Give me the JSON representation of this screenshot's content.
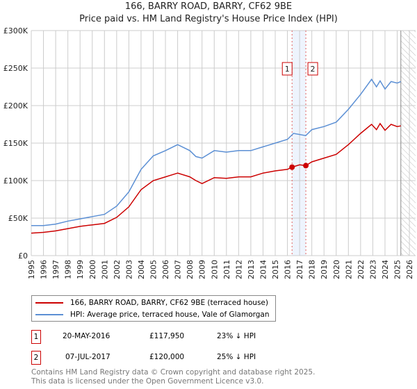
{
  "chart_data": {
    "type": "line",
    "title": "166, BARRY ROAD, BARRY, CF62 9BE",
    "subtitle": "Price paid vs. HM Land Registry's House Price Index (HPI)",
    "xlim": [
      1995,
      2026
    ],
    "ylim": [
      0,
      300000
    ],
    "x_ticks": [
      "1995",
      "1996",
      "1997",
      "1998",
      "1999",
      "2000",
      "2001",
      "2002",
      "2003",
      "2004",
      "2005",
      "2006",
      "2007",
      "2008",
      "2009",
      "2010",
      "2011",
      "2012",
      "2013",
      "2014",
      "2015",
      "2016",
      "2017",
      "2018",
      "2019",
      "2020",
      "2021",
      "2022",
      "2023",
      "2024",
      "2025",
      "2026"
    ],
    "y_ticks": [
      {
        "v": 0,
        "label": "£0"
      },
      {
        "v": 50000,
        "label": "£50K"
      },
      {
        "v": 100000,
        "label": "£100K"
      },
      {
        "v": 150000,
        "label": "£150K"
      },
      {
        "v": 200000,
        "label": "£200K"
      },
      {
        "v": 250000,
        "label": "£250K"
      },
      {
        "v": 300000,
        "label": "£300K"
      }
    ],
    "grid": true,
    "series": [
      {
        "name": "166, BARRY ROAD, BARRY, CF62 9BE (terraced house)",
        "color": "#cc0000",
        "x": [
          1995,
          1996,
          1997,
          1998,
          1999,
          2000,
          2001,
          2002,
          2003,
          2004,
          2005,
          2006,
          2007,
          2008,
          2008.5,
          2009,
          2010,
          2011,
          2012,
          2013,
          2014,
          2015,
          2016,
          2016.38,
          2017,
          2017.51,
          2018,
          2019,
          2020,
          2021,
          2022,
          2022.9,
          2023.3,
          2023.6,
          2024,
          2024.5,
          2025,
          2025.3
        ],
        "y": [
          30000,
          31000,
          33000,
          36000,
          39000,
          41000,
          43000,
          51000,
          65000,
          88000,
          100000,
          105000,
          110000,
          105000,
          100000,
          96000,
          104000,
          103000,
          105000,
          105000,
          110000,
          113000,
          115000,
          117950,
          121000,
          120000,
          125000,
          130000,
          135000,
          148000,
          163000,
          175000,
          168000,
          176000,
          167000,
          175000,
          172000,
          173000
        ]
      },
      {
        "name": "HPI: Average price, terraced house, Vale of Glamorgan",
        "color": "#5b8fd4",
        "x": [
          1995,
          1996,
          1997,
          1998,
          1999,
          2000,
          2001,
          2002,
          2003,
          2004,
          2005,
          2006,
          2007,
          2008,
          2008.5,
          2009,
          2010,
          2011,
          2012,
          2013,
          2014,
          2015,
          2016,
          2016.5,
          2017.5,
          2018,
          2019,
          2020,
          2021,
          2022,
          2022.9,
          2023.3,
          2023.6,
          2024,
          2024.5,
          2025,
          2025.3
        ],
        "y": [
          40000,
          40000,
          42000,
          46000,
          49000,
          52000,
          55000,
          66000,
          85000,
          115000,
          133000,
          140000,
          148000,
          140000,
          132000,
          130000,
          140000,
          138000,
          140000,
          140000,
          145000,
          150000,
          155000,
          163000,
          160000,
          168000,
          172000,
          178000,
          195000,
          215000,
          235000,
          225000,
          233000,
          222000,
          232000,
          230000,
          232000
        ]
      }
    ],
    "sales": [
      {
        "id": "1",
        "date": "20-MAY-2016",
        "x": 2016.38,
        "price": "£117,950",
        "value": 117950,
        "hpi": "23% ↓ HPI"
      },
      {
        "id": "2",
        "date": "07-JUL-2017",
        "x": 2017.51,
        "price": "£120,000",
        "value": 120000,
        "hpi": "25% ↓ HPI"
      }
    ],
    "forecast_from": 2025.3
  },
  "footer": {
    "line1": "Contains HM Land Registry data © Crown copyright and database right 2025.",
    "line2": "This data is licensed under the Open Government Licence v3.0."
  }
}
